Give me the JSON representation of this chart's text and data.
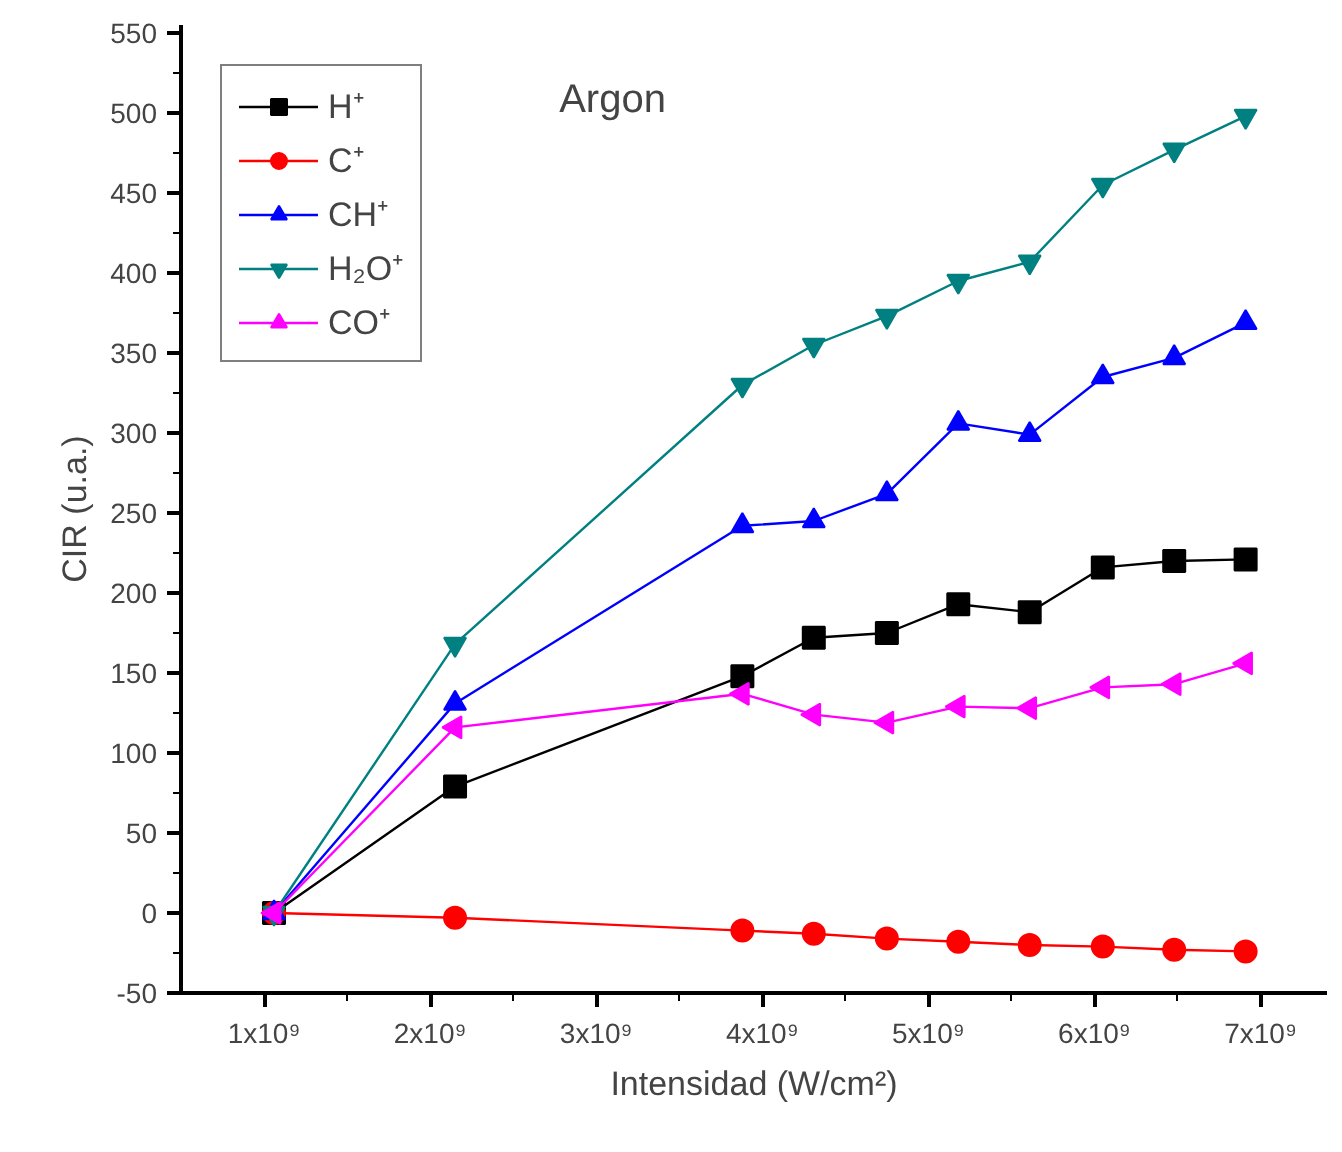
{
  "chart_data": {
    "type": "line",
    "title": "Argon",
    "xlabel": "Intensidad (W/cm²)",
    "ylabel": "CIR (u.a.)",
    "xlim": [
      500000000,
      7400000000
    ],
    "ylim": [
      -50,
      555
    ],
    "xticks": [
      {
        "value": 1000000000,
        "label": "1x10⁹"
      },
      {
        "value": 2000000000,
        "label": "2x10⁹"
      },
      {
        "value": 3000000000,
        "label": "3x10⁹"
      },
      {
        "value": 4000000000,
        "label": "4x10⁹"
      },
      {
        "value": 5000000000,
        "label": "5x10⁹"
      },
      {
        "value": 6000000000,
        "label": "6x10⁹"
      },
      {
        "value": 7000000000,
        "label": "7x10⁹"
      }
    ],
    "yticks": [
      -50,
      0,
      50,
      100,
      150,
      200,
      250,
      300,
      350,
      400,
      450,
      500,
      550
    ],
    "x": [
      1060000000,
      2150000000,
      3880000000,
      4310000000,
      4750000000,
      5180000000,
      5610000000,
      6050000000,
      6480000000,
      6910000000
    ],
    "grid": false,
    "legend": "top left",
    "series": [
      {
        "name": "H⁺",
        "color": "#000000",
        "marker": "square",
        "values": [
          0,
          79,
          148,
          172,
          175,
          193,
          188,
          216,
          220,
          221
        ]
      },
      {
        "name": "C⁺",
        "color": "#ff0000",
        "marker": "circle",
        "values": [
          0,
          -3,
          -11,
          -13,
          -16,
          -18,
          -20,
          -21,
          -23,
          -24
        ]
      },
      {
        "name": "CH⁺",
        "color": "#0000ff",
        "marker": "triangle",
        "values": [
          0,
          131,
          242,
          245,
          262,
          306,
          299,
          335,
          347,
          369
        ]
      },
      {
        "name": "H₂O⁺",
        "color": "#008080",
        "marker": "triangle-down",
        "values": [
          0,
          168,
          330,
          355,
          373,
          395,
          407,
          455,
          477,
          498
        ]
      },
      {
        "name": "CO⁺",
        "color": "#ff00ff",
        "marker": "triangle-left",
        "values": [
          0,
          116,
          137,
          124,
          119,
          129,
          128,
          141,
          143,
          156
        ]
      }
    ]
  }
}
